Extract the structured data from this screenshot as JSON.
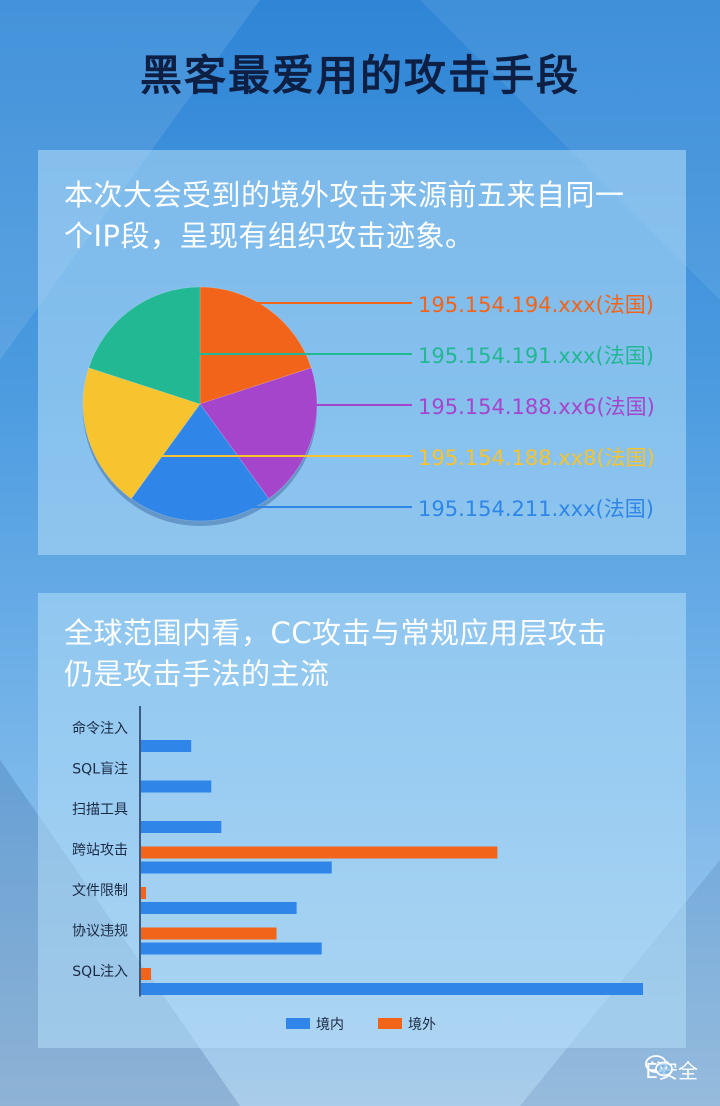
{
  "title": "黑客最爱用的攻击手段",
  "panel1": {
    "heading_lines": [
      "本次大会受到的境外攻击来源前五来自同一",
      "个IP段，呈现有组织攻击迹象。"
    ]
  },
  "panel2": {
    "heading_lines": [
      "全球范围内看，CC攻击与常规应用层攻击",
      "仍是攻击手法的主流"
    ]
  },
  "watermark": {
    "label": "E安全",
    "icon": "wechat-icon"
  },
  "chart_data": [
    {
      "type": "pie",
      "slices": [
        {
          "label": "195.154.194.xxx(法国)",
          "value": 20,
          "color": "#f26419"
        },
        {
          "label": "195.154.191.xxx(法国)",
          "value": 20,
          "color": "#22b893"
        },
        {
          "label": "195.154.188.xx6(法国)",
          "value": 20,
          "color": "#a545cc"
        },
        {
          "label": "195.154.188.xx8(法国)",
          "value": 20,
          "color": "#f7c32e"
        },
        {
          "label": "195.154.211.xxx(法国)",
          "value": 20,
          "color": "#2f86e8"
        }
      ]
    },
    {
      "type": "bar",
      "orientation": "horizontal",
      "categories": [
        "命令注入",
        "SQL盲注",
        "扫描工具",
        "跨站攻击",
        "文件限制",
        "协议违规",
        "SQL注入"
      ],
      "series": [
        {
          "name": "境内",
          "color": "#2f86e8",
          "values": [
            10,
            14,
            16,
            38,
            31,
            36,
            100
          ]
        },
        {
          "name": "境外",
          "color": "#f26419",
          "values": [
            0,
            0,
            0,
            71,
            1,
            27,
            2
          ]
        }
      ],
      "xlim": [
        0,
        100
      ],
      "legend_position": "bottom",
      "grid": false
    }
  ]
}
